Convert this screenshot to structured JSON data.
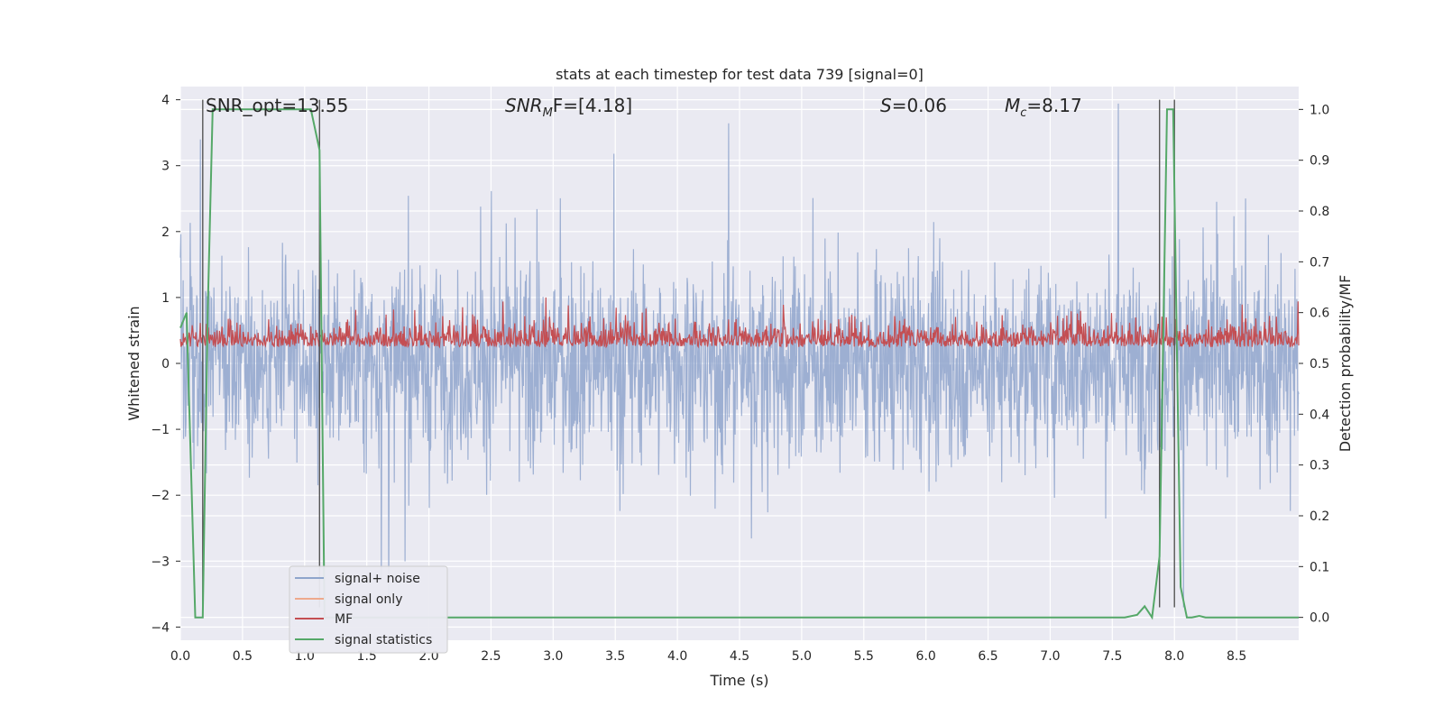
{
  "chart_data": {
    "type": "line",
    "title": "stats at each timestep for test data 739 [signal=0]",
    "xlabel": "Time (s)",
    "ylabel_left": "Whitened strain",
    "ylabel_right": "Detection probability/MF",
    "xlim": [
      0.0,
      9.0
    ],
    "ylim_left": [
      -4.2,
      4.2
    ],
    "ylim_right": [
      -0.045,
      1.045
    ],
    "x_ticks": [
      "0.0",
      "0.5",
      "1.0",
      "1.5",
      "2.0",
      "2.5",
      "3.0",
      "3.5",
      "4.0",
      "4.5",
      "5.0",
      "5.5",
      "6.0",
      "6.5",
      "7.0",
      "7.5",
      "8.0",
      "8.5"
    ],
    "y_ticks_left": [
      "4",
      "3",
      "2",
      "1",
      "0",
      "−1",
      "−2",
      "−3",
      "−4"
    ],
    "y_ticks_right": [
      "1.0",
      "0.9",
      "0.8",
      "0.7",
      "0.6",
      "0.5",
      "0.4",
      "0.3",
      "0.2",
      "0.1",
      "0.0"
    ],
    "grid": true,
    "legend_position": "lower-left",
    "annotations": {
      "snr_opt": "SNR_opt=13.55",
      "snr_mf_base": "SNR",
      "snr_mf_sub": "M",
      "snr_mf_tail": "F=[4.18]",
      "s_label": "S",
      "s_value": "=0.06",
      "mc_label": "M",
      "mc_sub": "c",
      "mc_value": "=8.17"
    },
    "series": [
      {
        "name": "signal+ noise",
        "color": "#8fa5cc",
        "axis": "left",
        "description_values": {
          "center": 0.0,
          "amplitude_range": [
            -3.7,
            4.0
          ]
        }
      },
      {
        "name": "signal only",
        "color": "#eea98d",
        "axis": "left",
        "values": []
      },
      {
        "name": "MF",
        "color": "#c44e52",
        "axis": "left",
        "description_values": {
          "range": [
            0.0,
            1.0
          ]
        }
      },
      {
        "name": "signal statistics",
        "color": "#55a868",
        "axis": "right",
        "x": [
          0.0,
          0.05,
          0.12,
          0.18,
          0.22,
          0.26,
          0.3,
          0.5,
          0.8,
          1.05,
          1.12,
          1.16,
          1.2,
          1.5,
          2.0,
          3.0,
          4.0,
          5.0,
          6.0,
          7.0,
          7.6,
          7.7,
          7.76,
          7.82,
          7.88,
          7.94,
          7.99,
          8.05,
          8.1,
          8.14,
          8.2,
          8.25,
          8.3,
          8.5,
          9.0
        ],
        "y": [
          0.57,
          0.6,
          0.0,
          0.0,
          0.6,
          1.0,
          1.0,
          1.0,
          1.0,
          1.0,
          0.92,
          0.0,
          0.0,
          0.0,
          0.0,
          0.0,
          0.0,
          0.0,
          0.0,
          0.0,
          0.0,
          0.005,
          0.022,
          0.0,
          0.12,
          1.0,
          1.0,
          0.06,
          0.0,
          0.0,
          0.003,
          0.0,
          0.0,
          0.0,
          0.0
        ]
      }
    ],
    "vertical_lines": [
      0.18,
      1.12,
      7.88,
      8.0
    ]
  }
}
